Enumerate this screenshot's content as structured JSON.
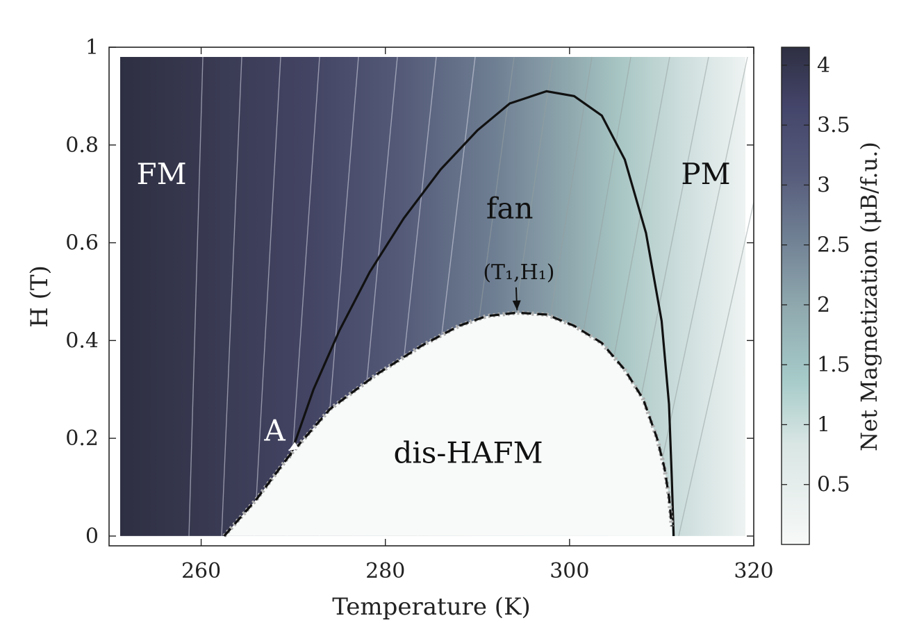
{
  "chart_data": {
    "type": "heatmap",
    "title": "",
    "xlabel": "Temperature (K)",
    "ylabel": "H (T)",
    "xlim": [
      250,
      320
    ],
    "ylim": [
      -0.02,
      1.0
    ],
    "x_ticks": [
      260,
      280,
      300,
      320
    ],
    "y_ticks": [
      0,
      0.2,
      0.4,
      0.6,
      0.8,
      1
    ],
    "y_tick_labels": [
      "0",
      "0.2",
      "0.4",
      "0.6",
      "0.8",
      "1"
    ],
    "grid": false,
    "colorbar": {
      "label": "Net Magnetization (μB/f.u.)",
      "range": [
        0,
        4.15
      ],
      "ticks": [
        0.5,
        1,
        1.5,
        2,
        2.5,
        3,
        3.5,
        4
      ],
      "tick_labels": [
        "0.5",
        "1",
        "1.5",
        "2",
        "2.5",
        "3",
        "3.5",
        "4"
      ],
      "colors": [
        "#f7f9f8",
        "#d9e6e4",
        "#a6cbc9",
        "#8fa8ae",
        "#6f7f93",
        "#555a7a",
        "#44456a",
        "#2e2f42"
      ]
    },
    "regions": [
      {
        "label": "FM",
        "x": 255.7,
        "y": 0.74,
        "color": "#ffffff"
      },
      {
        "label": "fan",
        "x": 293.5,
        "y": 0.67,
        "color": "#111111"
      },
      {
        "label": "PM",
        "x": 314.8,
        "y": 0.74,
        "color": "#111111"
      },
      {
        "label": "dis-HAFM",
        "x": 289,
        "y": 0.17,
        "color": "#111111"
      }
    ],
    "series": [
      {
        "name": "",
        "style": "solid",
        "points": [
          [
            269.6,
            0.16
          ],
          [
            272.2,
            0.3
          ],
          [
            275,
            0.42
          ],
          [
            278.3,
            0.54
          ],
          [
            282,
            0.65
          ],
          [
            286,
            0.75
          ],
          [
            290,
            0.83
          ],
          [
            293.5,
            0.885
          ],
          [
            297.5,
            0.91
          ],
          [
            300.5,
            0.9
          ],
          [
            303.5,
            0.86
          ],
          [
            306,
            0.77
          ],
          [
            308.3,
            0.62
          ],
          [
            310,
            0.44
          ],
          [
            310.8,
            0.27
          ],
          [
            311.1,
            0.12
          ],
          [
            311.3,
            0.0
          ]
        ]
      },
      {
        "name": "",
        "style": "dashed",
        "points": [
          [
            262.5,
            0.0
          ],
          [
            266,
            0.075
          ],
          [
            269.6,
            0.165
          ],
          [
            274,
            0.26
          ],
          [
            279,
            0.33
          ],
          [
            284,
            0.39
          ],
          [
            288,
            0.43
          ],
          [
            291,
            0.45
          ],
          [
            294.3,
            0.457
          ],
          [
            297.5,
            0.453
          ],
          [
            300.5,
            0.43
          ],
          [
            303.5,
            0.395
          ],
          [
            306,
            0.34
          ],
          [
            308,
            0.28
          ],
          [
            309.5,
            0.2
          ],
          [
            310.3,
            0.14
          ],
          [
            310.8,
            0.08
          ],
          [
            311.1,
            0.02
          ]
        ]
      }
    ],
    "annotations": [
      {
        "text": "A",
        "x": 268.3,
        "y": 0.215,
        "arrow_to": [
          269.5,
          0.175
        ],
        "color": "#ffffff"
      },
      {
        "text": "(T₁,H₁)",
        "x": 294.5,
        "y": 0.54,
        "arrow_to": [
          294.3,
          0.462
        ],
        "color": "#111111"
      }
    ]
  }
}
